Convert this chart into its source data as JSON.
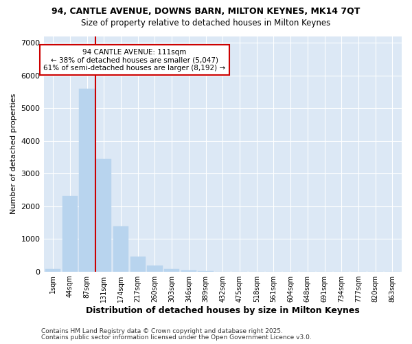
{
  "title1": "94, CANTLE AVENUE, DOWNS BARN, MILTON KEYNES, MK14 7QT",
  "title2": "Size of property relative to detached houses in Milton Keynes",
  "xlabel": "Distribution of detached houses by size in Milton Keynes",
  "ylabel": "Number of detached properties",
  "categories": [
    "1sqm",
    "44sqm",
    "87sqm",
    "131sqm",
    "174sqm",
    "217sqm",
    "260sqm",
    "303sqm",
    "346sqm",
    "389sqm",
    "432sqm",
    "475sqm",
    "518sqm",
    "561sqm",
    "604sqm",
    "648sqm",
    "691sqm",
    "734sqm",
    "777sqm",
    "820sqm",
    "863sqm"
  ],
  "values": [
    80,
    2300,
    5580,
    3450,
    1370,
    460,
    175,
    65,
    30,
    5,
    0,
    0,
    0,
    0,
    0,
    0,
    0,
    0,
    0,
    0,
    0
  ],
  "bar_color": "#b8d4ee",
  "bar_edgecolor": "#b8d4ee",
  "vline_color": "#cc0000",
  "vline_x_index": 2.5,
  "annotation_title": "94 CANTLE AVENUE: 111sqm",
  "annotation_line1": "← 38% of detached houses are smaller (5,047)",
  "annotation_line2": "61% of semi-detached houses are larger (8,192) →",
  "annotation_box_edgecolor": "#cc0000",
  "footnote1": "Contains HM Land Registry data © Crown copyright and database right 2025.",
  "footnote2": "Contains public sector information licensed under the Open Government Licence v3.0.",
  "ylim": [
    0,
    7200
  ],
  "yticks": [
    0,
    1000,
    2000,
    3000,
    4000,
    5000,
    6000,
    7000
  ],
  "fig_bg_color": "#ffffff",
  "plot_bg_color": "#dce8f5"
}
